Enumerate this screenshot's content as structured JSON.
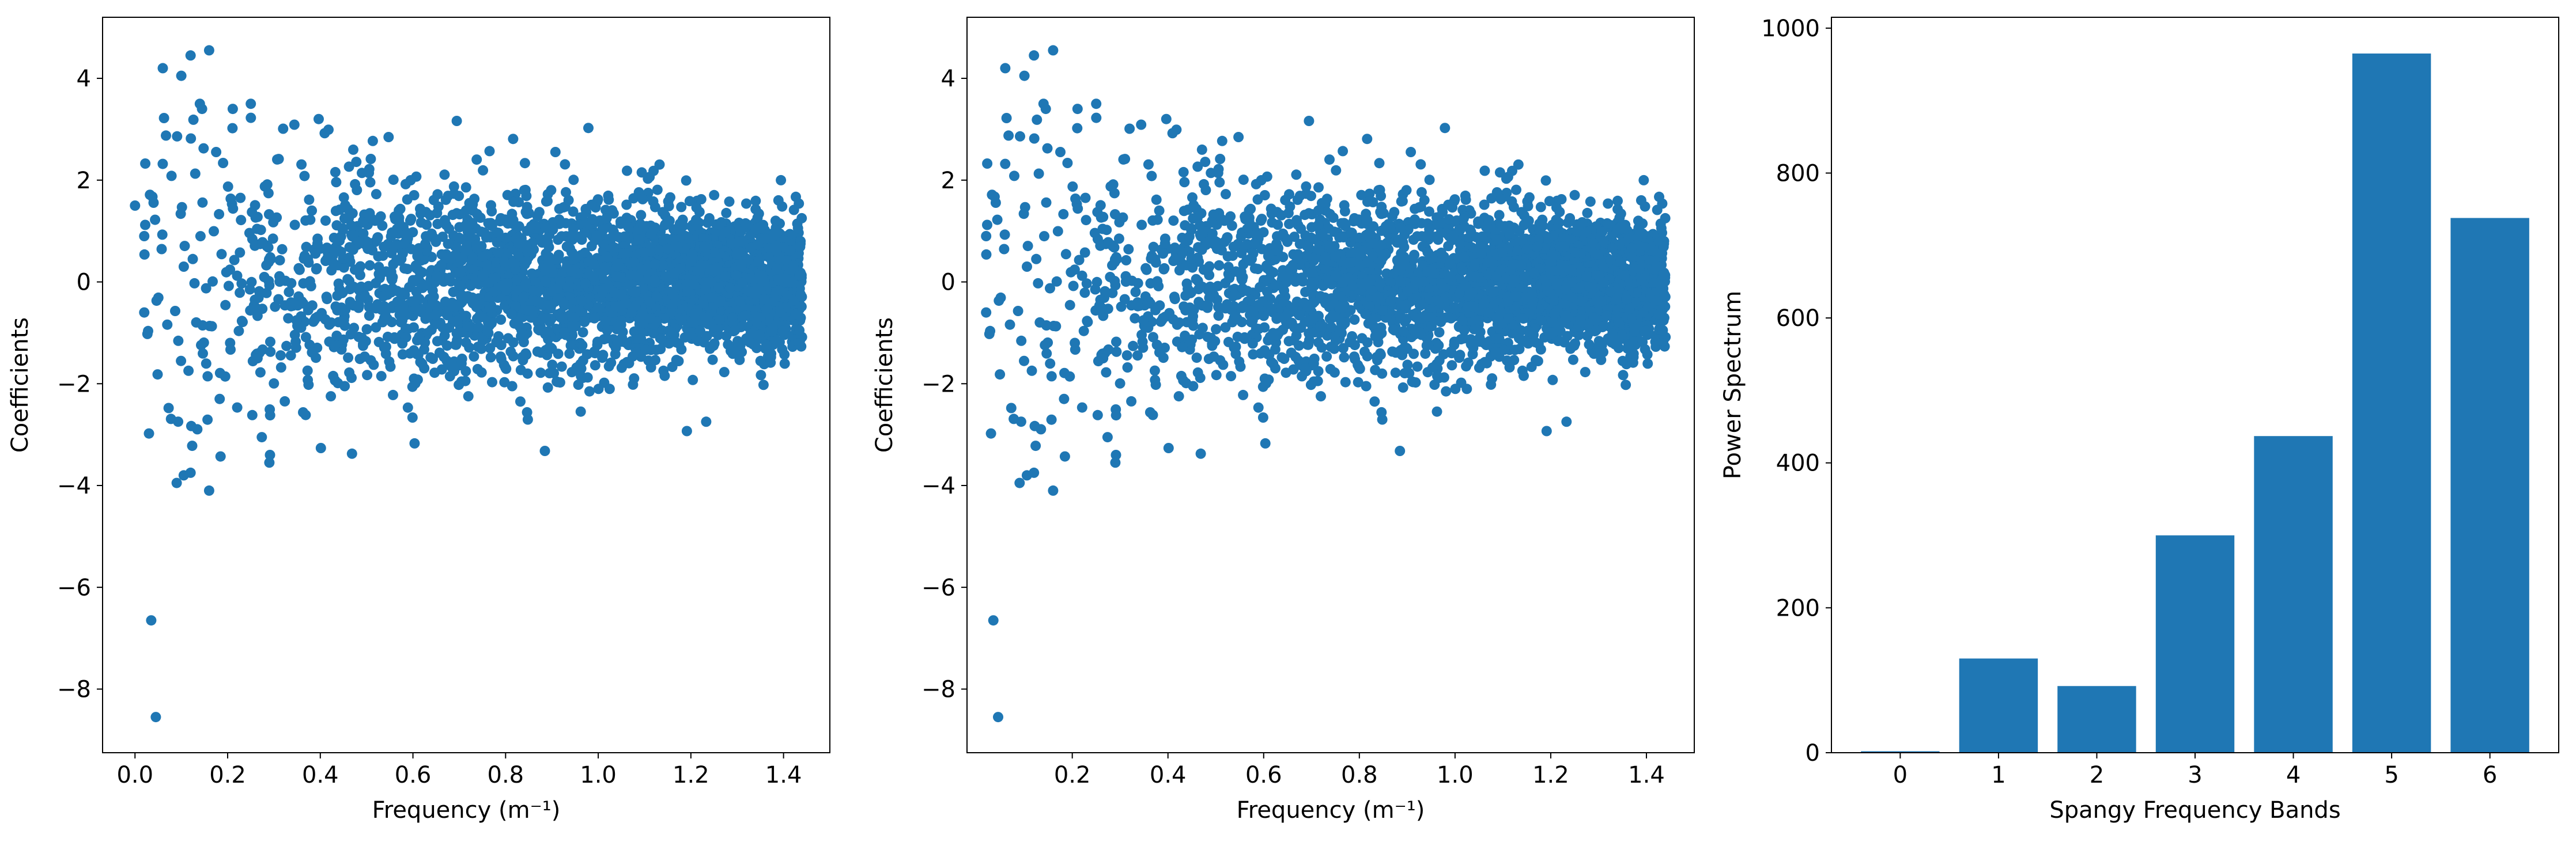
{
  "chart_data": [
    {
      "type": "scatter",
      "xlabel": "Frequency (m⁻¹)",
      "ylabel": "Coefficients",
      "xlim": [
        -0.07,
        1.5
      ],
      "ylim": [
        -9.25,
        5.2
      ],
      "xticks": [
        0.0,
        0.2,
        0.4,
        0.6,
        0.8,
        1.0,
        1.2,
        1.4
      ],
      "xtick_labels": [
        "0.0",
        "0.2",
        "0.4",
        "0.6",
        "0.8",
        "1.0",
        "1.2",
        "1.4"
      ],
      "yticks": [
        -8,
        -6,
        -4,
        -2,
        0,
        2,
        4
      ],
      "ytick_labels": [
        "−8",
        "−6",
        "−4",
        "−2",
        "0",
        "2",
        "4"
      ],
      "color": "#1f77b4",
      "grid": false,
      "notable_points": [
        [
          0.0,
          1.5
        ],
        [
          0.02,
          0.9
        ],
        [
          0.02,
          -0.6
        ],
        [
          0.035,
          -6.65
        ],
        [
          0.045,
          -8.55
        ],
        [
          0.06,
          4.2
        ],
        [
          0.1,
          4.05
        ],
        [
          0.12,
          4.45
        ],
        [
          0.16,
          4.55
        ],
        [
          0.14,
          3.5
        ],
        [
          0.25,
          3.5
        ],
        [
          0.16,
          -4.1
        ],
        [
          0.12,
          -3.75
        ],
        [
          0.09,
          -3.95
        ],
        [
          0.29,
          -3.55
        ]
      ],
      "distribution": "approx. 3000 points spread over x from 0.0 to 1.44; y-spread shrinks from about ±3 near x=0.1 to about ±1 near x=1.4, denser toward higher frequencies"
    },
    {
      "type": "scatter",
      "xlabel": "Frequency (m⁻¹)",
      "ylabel": "Coefficients",
      "xlim": [
        -0.02,
        1.5
      ],
      "ylim": [
        -9.25,
        5.2
      ],
      "xticks": [
        0.2,
        0.4,
        0.6,
        0.8,
        1.0,
        1.2,
        1.4
      ],
      "xtick_labels": [
        "0.2",
        "0.4",
        "0.6",
        "0.8",
        "1.0",
        "1.2",
        "1.4"
      ],
      "yticks": [
        -8,
        -6,
        -4,
        -2,
        0,
        2,
        4
      ],
      "ytick_labels": [
        "−8",
        "−6",
        "−4",
        "−2",
        "0",
        "2",
        "4"
      ],
      "color": "#1f77b4",
      "grid": false,
      "notable_points": [
        [
          0.02,
          0.9
        ],
        [
          0.02,
          -0.6
        ],
        [
          0.035,
          -6.65
        ],
        [
          0.045,
          -8.55
        ],
        [
          0.06,
          4.2
        ],
        [
          0.1,
          4.05
        ],
        [
          0.12,
          4.45
        ],
        [
          0.16,
          4.55
        ],
        [
          0.14,
          3.5
        ],
        [
          0.25,
          3.5
        ],
        [
          0.16,
          -4.1
        ],
        [
          0.12,
          -3.75
        ],
        [
          0.09,
          -3.95
        ],
        [
          0.29,
          -3.55
        ]
      ],
      "distribution": "same coefficients as the first panel without the point at frequency 0"
    },
    {
      "type": "bar",
      "xlabel": "Spangy Frequency Bands",
      "ylabel": "Power Spectrum",
      "categories": [
        "0",
        "1",
        "2",
        "3",
        "4",
        "5",
        "6"
      ],
      "values": [
        2,
        130,
        92,
        300,
        437,
        965,
        738
      ],
      "xlim": [
        -0.7,
        6.7
      ],
      "ylim": [
        0,
        1015
      ],
      "yticks": [
        0,
        200,
        400,
        600,
        800,
        1000
      ],
      "ytick_labels": [
        "0",
        "200",
        "400",
        "600",
        "800",
        "1000"
      ],
      "color": "#1f77b4",
      "grid": false
    }
  ]
}
